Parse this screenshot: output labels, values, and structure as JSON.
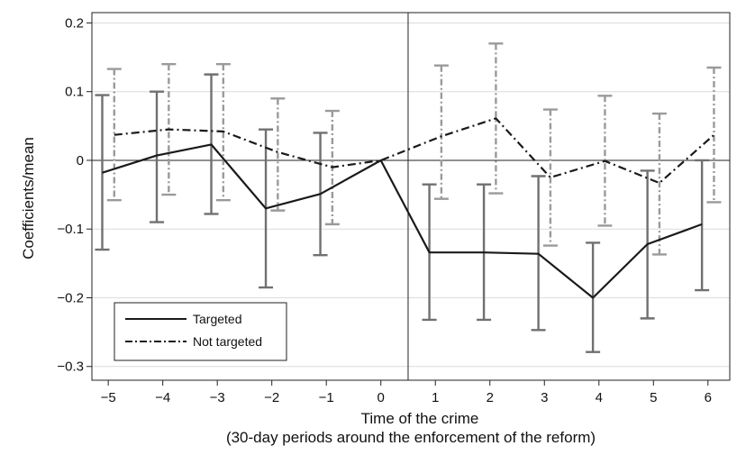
{
  "chart_data": {
    "type": "line",
    "xlabel": "Time of the crime",
    "xlabel2": "(30-day periods around the enforcement of the reform)",
    "ylabel": "Coefficients/mean",
    "x": [
      -5,
      -4,
      -3,
      -2,
      -1,
      0,
      1,
      2,
      3,
      4,
      5,
      6
    ],
    "x_tick_labels": [
      "−5",
      "−4",
      "−3",
      "−2",
      "−1",
      "0",
      "1",
      "2",
      "3",
      "4",
      "5",
      "6"
    ],
    "y_ticks": [
      0.2,
      0.1,
      0,
      -0.1,
      -0.2,
      -0.3
    ],
    "y_tick_labels": [
      "0.2",
      "0.1",
      "0",
      "−0.1",
      "−0.2",
      "−0.3"
    ],
    "ylim": [
      -0.32,
      0.215
    ],
    "xlim": [
      -5.3,
      6.4
    ],
    "event_line_x": 0.5,
    "grid": true,
    "legend_position": "bottom-left",
    "series": [
      {
        "name": "Targeted",
        "style": "solid",
        "line_color": "#1a1a1a",
        "errorbar_color": "#707070",
        "values": [
          -0.018,
          0.007,
          0.023,
          -0.07,
          -0.049,
          0,
          -0.134,
          -0.134,
          -0.136,
          -0.2,
          -0.122,
          -0.093
        ],
        "ci_low": [
          -0.13,
          -0.09,
          -0.078,
          -0.185,
          -0.138,
          0,
          -0.232,
          -0.232,
          -0.247,
          -0.279,
          -0.23,
          -0.189
        ],
        "ci_high": [
          0.095,
          0.1,
          0.125,
          0.045,
          0.04,
          0,
          -0.035,
          -0.035,
          -0.023,
          -0.12,
          -0.015,
          0.0
        ]
      },
      {
        "name": "Not targeted",
        "style": "dashdot",
        "line_color": "#1a1a1a",
        "errorbar_color": "#9a9a9a",
        "values": [
          0.037,
          0.045,
          0.042,
          0.012,
          -0.01,
          0,
          0.035,
          0.061,
          -0.025,
          -0.001,
          -0.033,
          0.037
        ],
        "ci_low": [
          -0.058,
          -0.05,
          -0.058,
          -0.073,
          -0.093,
          0,
          -0.056,
          -0.048,
          -0.124,
          -0.095,
          -0.137,
          -0.061
        ],
        "ci_high": [
          0.133,
          0.14,
          0.14,
          0.09,
          0.072,
          0,
          0.138,
          0.17,
          0.074,
          0.094,
          0.068,
          0.135
        ]
      }
    ]
  }
}
